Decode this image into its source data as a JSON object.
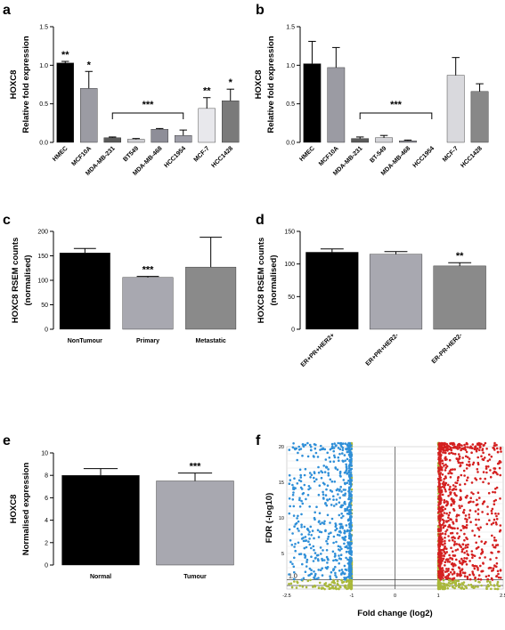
{
  "chart_data": [
    {
      "panel": "a",
      "type": "bar",
      "ylabel_1": "HOXC8",
      "ylabel_2": "Relative fold expression",
      "ylim": [
        0,
        1.5
      ],
      "yticks": [
        "0.0",
        "0.5",
        "1.0",
        "1.5"
      ],
      "categories": [
        "HMEC",
        "MCF10A",
        "MDA-MB-231",
        "BT549",
        "MDA-MB-468",
        "HCC1954",
        "MCF-7",
        "HCC1428"
      ],
      "values": [
        1.03,
        0.7,
        0.06,
        0.04,
        0.17,
        0.09,
        0.44,
        0.54
      ],
      "errors": [
        0.02,
        0.22,
        0.01,
        0.01,
        0.01,
        0.07,
        0.14,
        0.15
      ],
      "colors": [
        "#000000",
        "#9b9ba3",
        "#5b5b5b",
        "#cfcfd3",
        "#8e8e98",
        "#9e9ea8",
        "#e8e8ec",
        "#7a7a7a"
      ],
      "bracket_label": "***",
      "annotations": [
        "**",
        "*"
      ]
    },
    {
      "panel": "b",
      "type": "bar",
      "ylabel_1": "HOXC8",
      "ylabel_2": "Relative fold expression",
      "ylim": [
        0,
        1.5
      ],
      "yticks": [
        "0.0",
        "0.5",
        "1.0",
        "1.5"
      ],
      "categories": [
        "HMEC",
        "MCF10A",
        "MDA-MB-231",
        "BT-549",
        "MDA-MB-468",
        "HCC1954",
        "MCF-7",
        "HCC1428"
      ],
      "values": [
        1.02,
        0.97,
        0.05,
        0.06,
        0.02,
        0.0,
        0.87,
        0.66
      ],
      "errors": [
        0.29,
        0.26,
        0.02,
        0.03,
        0.01,
        0.0,
        0.23,
        0.1
      ],
      "colors": [
        "#000000",
        "#9b9ba3",
        "#5b5b5b",
        "#d4d4d8",
        "#8e8e98",
        "#aaaaaa",
        "#d9d9dd",
        "#888888"
      ],
      "bracket_label": "***"
    },
    {
      "panel": "c",
      "type": "bar",
      "ylabel_1": "HOXC8 RSEM counts",
      "ylabel_2": "(normalised)",
      "ylim": [
        0,
        200
      ],
      "yticks": [
        "0",
        "50",
        "100",
        "150",
        "200"
      ],
      "categories": [
        "NonTumour",
        "Primary",
        "Metastatic"
      ],
      "values": [
        156,
        106,
        127
      ],
      "errors": [
        9,
        2,
        61
      ],
      "colors": [
        "#000000",
        "#a8a8b0",
        "#8a8a8a"
      ],
      "annotations": [
        "",
        "***",
        ""
      ]
    },
    {
      "panel": "d",
      "type": "bar",
      "ylabel_1": "HOXC8 RSEM counts",
      "ylabel_2": "(normalised)",
      "ylim": [
        0,
        150
      ],
      "yticks": [
        "0",
        "50",
        "100",
        "150"
      ],
      "categories": [
        "ER+PR+HER2+",
        "ER+PR+HER2-",
        "ER-PR-HER2-"
      ],
      "values": [
        118,
        115,
        97
      ],
      "errors": [
        5,
        4,
        5
      ],
      "colors": [
        "#000000",
        "#a8a8b0",
        "#8a8a8a"
      ],
      "annotations": [
        "",
        "",
        "**"
      ]
    },
    {
      "panel": "e",
      "type": "bar",
      "ylabel_1": "HOXC8",
      "ylabel_2": "Normalised expression",
      "ylim": [
        0,
        10
      ],
      "yticks": [
        "0",
        "2",
        "4",
        "6",
        "8",
        "10"
      ],
      "categories": [
        "Normal",
        "Tumour"
      ],
      "values": [
        8.0,
        7.5
      ],
      "errors": [
        0.6,
        0.7
      ],
      "colors": [
        "#000000",
        "#a8a8b0"
      ],
      "annotations": [
        "",
        "***"
      ]
    },
    {
      "panel": "f",
      "type": "scatter",
      "xlabel": "Fold change (log2)",
      "ylabel": "FDR (-log10)",
      "xlim": [
        -2.5,
        2.5
      ],
      "ylim": [
        0,
        20
      ],
      "xticks": [
        "-2.5",
        "-1",
        "0",
        "1",
        "2.5"
      ],
      "yticks": [
        "5",
        "10",
        "15",
        "20"
      ],
      "threshold_label": "1.0",
      "colors": {
        "down": "#2f8fd8",
        "up": "#d42020",
        "ns": "#a9b83a"
      }
    }
  ]
}
